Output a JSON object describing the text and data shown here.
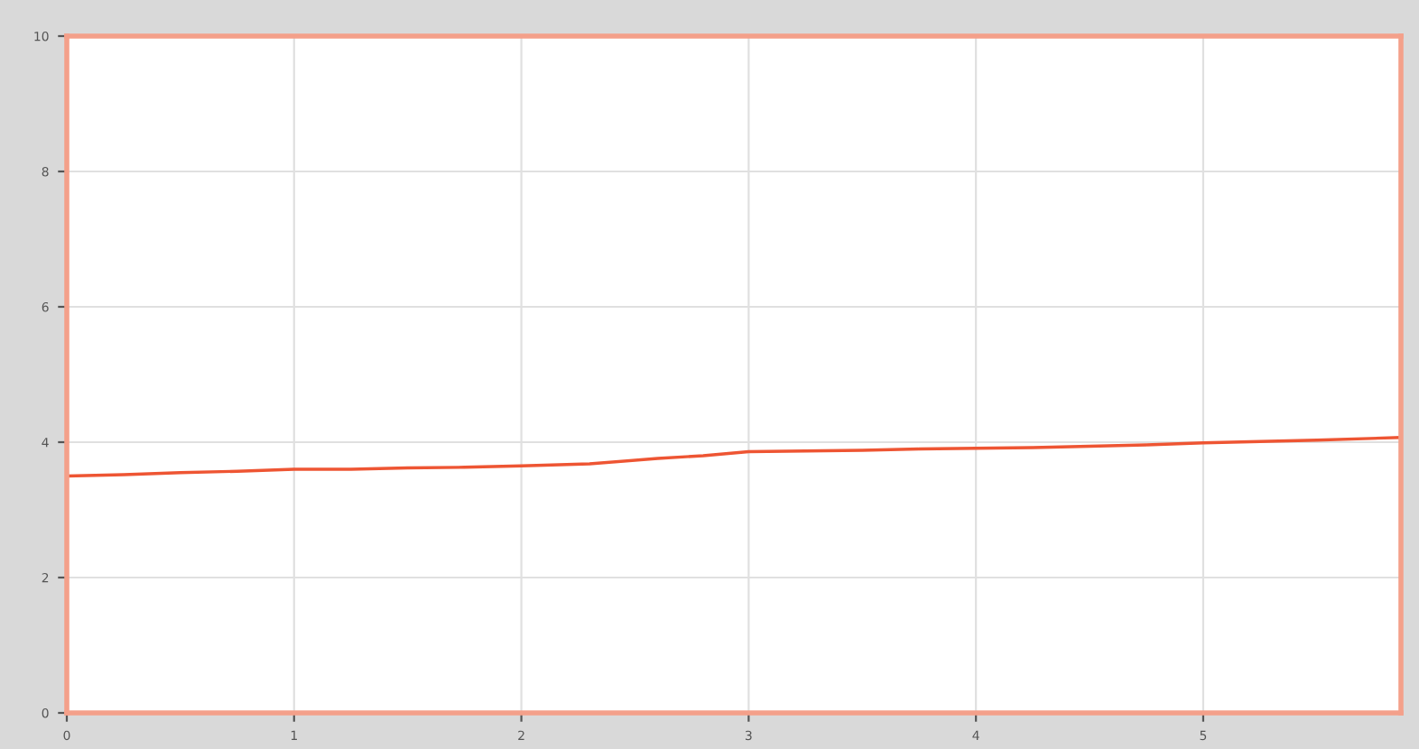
{
  "chart_data": {
    "type": "line",
    "series": [
      {
        "color": "#ee5533",
        "x": [
          0,
          0.25,
          0.5,
          0.75,
          1.0,
          1.25,
          1.5,
          1.75,
          2.0,
          2.3,
          2.6,
          2.8,
          3.0,
          3.25,
          3.5,
          3.75,
          4.0,
          4.25,
          4.5,
          4.75,
          5.0,
          5.25,
          5.5,
          5.87
        ],
        "values": [
          3.5,
          3.52,
          3.55,
          3.57,
          3.6,
          3.6,
          3.62,
          3.63,
          3.65,
          3.68,
          3.76,
          3.8,
          3.86,
          3.87,
          3.88,
          3.9,
          3.91,
          3.92,
          3.94,
          3.96,
          3.99,
          4.01,
          4.03,
          4.07
        ]
      }
    ],
    "xlim": [
      0,
      5.87
    ],
    "xticks": [
      0,
      1,
      2,
      3,
      4,
      5
    ],
    "ylim": [
      0,
      10
    ],
    "yticks": [
      0,
      2,
      4,
      6,
      8,
      10
    ],
    "grid": true,
    "marker": "none",
    "line_style": "solid"
  }
}
